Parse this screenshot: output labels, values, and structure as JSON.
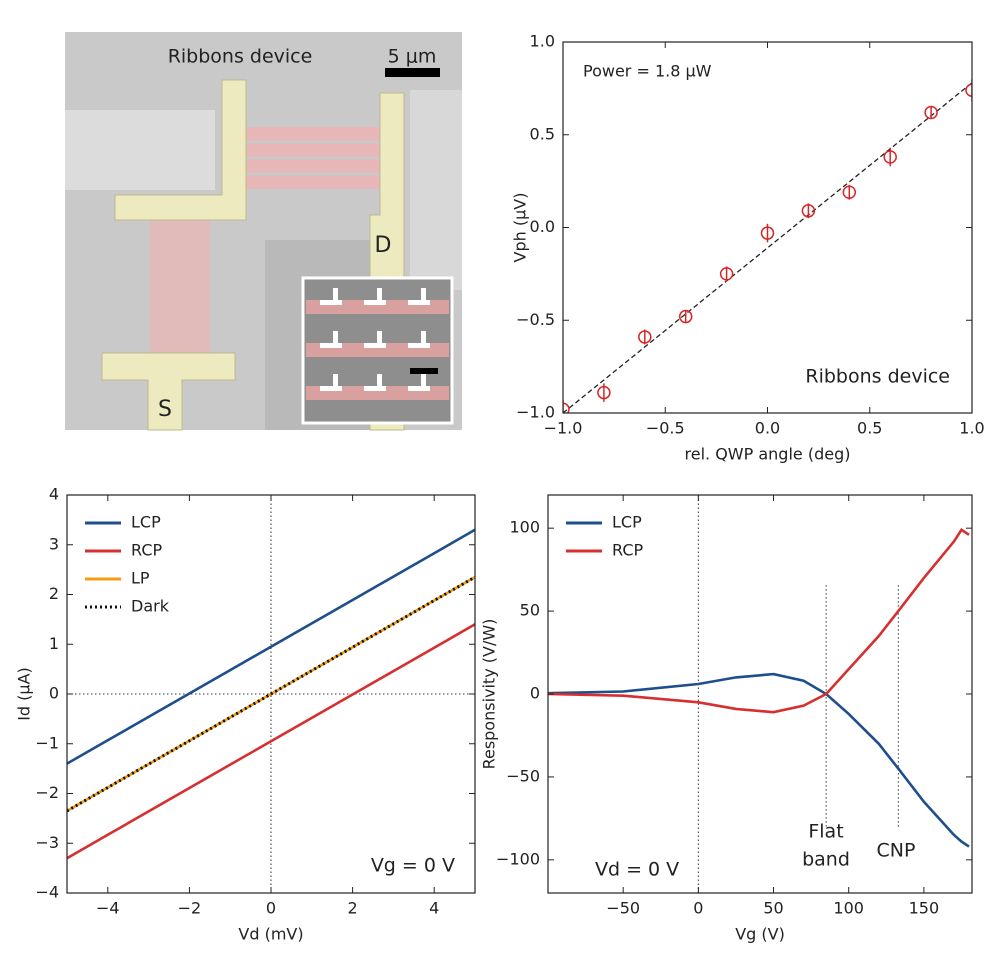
{
  "image_panel": {
    "title": "Ribbons device",
    "scale_bar": "5 μm",
    "labels": [
      "D",
      "S"
    ]
  },
  "chart_data": [
    {
      "type": "scatter",
      "xlabel": "rel. QWP angle (deg)",
      "ylabel": "Vph (μV)",
      "annotations": [
        "Power = 1.8 μW",
        "Ribbons device"
      ],
      "x": [
        -1.0,
        -0.8,
        -0.6,
        -0.4,
        -0.2,
        0.0,
        0.2,
        0.4,
        0.6,
        0.8,
        1.0
      ],
      "values": [
        -0.98,
        -0.89,
        -0.59,
        -0.48,
        -0.25,
        -0.03,
        0.09,
        0.19,
        0.38,
        0.62,
        0.74
      ],
      "errors": [
        0.05,
        0.05,
        0.04,
        0.03,
        0.04,
        0.05,
        0.04,
        0.04,
        0.05,
        0.03,
        0.06
      ],
      "color": "#d62728",
      "fit": {
        "x": [
          -1.0,
          1.0
        ],
        "values": [
          -1.0,
          0.78
        ],
        "color": "#222"
      },
      "xlim": [
        -1,
        1
      ],
      "ylim": [
        -1,
        1
      ],
      "xticks": [
        {
          "value": -1,
          "label": "−1.0"
        },
        {
          "value": -0.5,
          "label": "−0.5"
        },
        {
          "value": 0,
          "label": "0.0"
        },
        {
          "value": 0.5,
          "label": "0.5"
        },
        {
          "value": 1,
          "label": "1.0"
        }
      ],
      "yticks": [
        {
          "value": -1,
          "label": "−1.0"
        },
        {
          "value": -0.5,
          "label": "−0.5"
        },
        {
          "value": 0,
          "label": "0.0"
        },
        {
          "value": 0.5,
          "label": "0.5"
        },
        {
          "value": 1,
          "label": "1.0"
        }
      ]
    },
    {
      "type": "line",
      "xlabel": "Vd (mV)",
      "ylabel": "Id (μA)",
      "annotations": [
        "Vg = 0 V"
      ],
      "legend": "upper left",
      "x": [
        -5,
        -4,
        -3,
        -2,
        -1,
        0,
        1,
        2,
        3,
        4,
        5
      ],
      "series": [
        {
          "name": "LCP",
          "color": "#1f4e8c",
          "values": [
            -1.4,
            -0.93,
            -0.46,
            0.01,
            0.48,
            0.95,
            1.42,
            1.89,
            2.36,
            2.83,
            3.3
          ]
        },
        {
          "name": "RCP",
          "color": "#d62f2f",
          "values": [
            -3.3,
            -2.83,
            -2.36,
            -1.89,
            -1.42,
            -0.95,
            -0.48,
            -0.01,
            0.46,
            0.93,
            1.4
          ]
        },
        {
          "name": "LP",
          "color": "#f39c12",
          "values": [
            -2.35,
            -1.88,
            -1.41,
            -0.94,
            -0.47,
            0,
            0.47,
            0.94,
            1.41,
            1.88,
            2.35
          ]
        },
        {
          "name": "Dark",
          "color": "#111",
          "linestyle": "dotted",
          "values": [
            -2.35,
            -1.88,
            -1.41,
            -0.94,
            -0.47,
            0,
            0.47,
            0.94,
            1.41,
            1.88,
            2.35
          ]
        }
      ],
      "vlines": [
        {
          "x": 0
        }
      ],
      "hlines": [
        0
      ],
      "xlim": [
        -5,
        5
      ],
      "ylim": [
        -4,
        4
      ],
      "xticks": [
        {
          "value": -4,
          "label": "−4"
        },
        {
          "value": -2,
          "label": "−2"
        },
        0,
        2,
        4
      ],
      "yticks": [
        {
          "value": -4,
          "label": "−4"
        },
        {
          "value": -3,
          "label": "−3"
        },
        {
          "value": -2,
          "label": "−2"
        },
        {
          "value": -1,
          "label": "−1"
        },
        0,
        1,
        2,
        3,
        4
      ]
    },
    {
      "type": "line",
      "xlabel": "Vg (V)",
      "ylabel": "Responsivity (V/W)",
      "annotations": [
        "Vd = 0 V",
        "Flat",
        "band",
        "CNP"
      ],
      "legend": "upper left",
      "x": [
        -100,
        -50,
        0,
        25,
        50,
        70,
        85,
        100,
        120,
        133,
        150,
        170,
        175,
        180
      ],
      "series": [
        {
          "name": "LCP",
          "color": "#1f4e8c",
          "values": [
            0.5,
            1.5,
            6,
            10,
            12,
            8,
            0,
            -12,
            -30,
            -45,
            -65,
            -85,
            -89,
            -92
          ]
        },
        {
          "name": "RCP",
          "color": "#d62f2f",
          "values": [
            0,
            -1,
            -5,
            -9,
            -11,
            -7,
            0,
            15,
            35,
            50,
            70,
            92,
            99,
            96
          ]
        }
      ],
      "vlines": [
        {
          "x": 0
        },
        {
          "x": 85,
          "y": [
            -80,
            66
          ]
        },
        {
          "x": 133,
          "y": [
            -80,
            66
          ]
        }
      ],
      "xlim": [
        -100,
        182
      ],
      "ylim": [
        -120,
        120
      ],
      "xticks": [
        {
          "value": -50,
          "label": "−50"
        },
        0,
        50,
        100,
        150
      ],
      "yticks": [
        {
          "value": -100,
          "label": "−100"
        },
        {
          "value": -50,
          "label": "−50"
        },
        0,
        50,
        100
      ]
    }
  ]
}
